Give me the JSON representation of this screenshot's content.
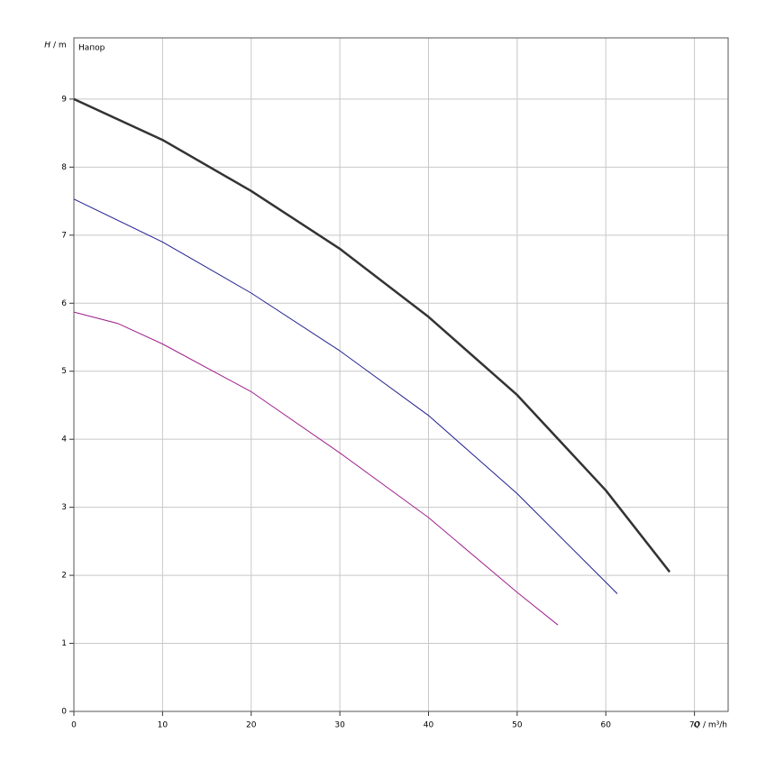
{
  "chart_data": {
    "type": "line",
    "title": "Напор",
    "ylabel_symbol": "H",
    "ylabel_unit": "/ m",
    "xlabel_symbol": "Q",
    "xlabel_unit": "/ m³/h",
    "xlim": [
      0,
      73.8
    ],
    "ylim": [
      0,
      9.9
    ],
    "xticks": [
      0,
      10,
      20,
      30,
      40,
      50,
      60,
      70
    ],
    "yticks": [
      0,
      1,
      2,
      3,
      4,
      5,
      6,
      7,
      8,
      9
    ],
    "grid": true,
    "series": [
      {
        "color": "#333333",
        "width": 2.5,
        "x": [
          0,
          10,
          20,
          30,
          40,
          50,
          60,
          67.2
        ],
        "values": [
          9.0,
          8.4,
          7.65,
          6.8,
          5.8,
          4.65,
          3.25,
          2.05
        ]
      },
      {
        "color": "#1f1f8f",
        "width": 1,
        "x": [
          0,
          10,
          20,
          30,
          40,
          50,
          61.3
        ],
        "values": [
          7.53,
          6.9,
          6.15,
          5.3,
          4.35,
          3.2,
          1.73
        ]
      },
      {
        "color": "#a0208c",
        "width": 1,
        "x": [
          0,
          5,
          10,
          20,
          30,
          40,
          50,
          54.6
        ],
        "values": [
          5.87,
          5.7,
          5.4,
          4.7,
          3.8,
          2.85,
          1.75,
          1.27
        ]
      }
    ]
  }
}
